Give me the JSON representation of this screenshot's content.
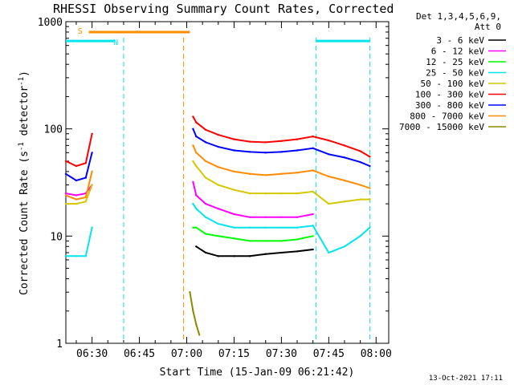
{
  "chart_data": {
    "type": "line",
    "title": "RHESSI Observing Summary Count Rates, Corrected",
    "xlabel": "Start Time (15-Jan-09 06:21:42)",
    "ylabel": "Corrected Count Rate (s^-1 detector^-1)",
    "ylabel_main": "Corrected Count Rate (s",
    "ylabel_sup1": "-1",
    "ylabel_mid": " detector",
    "ylabel_sup2": "-1",
    "ylabel_end": ")",
    "yscale": "log",
    "ylim": [
      1,
      1000
    ],
    "xlim": [
      "06:21:42",
      "08:04:00"
    ],
    "x_ticks": [
      "06:30",
      "06:45",
      "07:00",
      "07:15",
      "07:30",
      "07:45",
      "08:00"
    ],
    "y_ticks": [
      "1",
      "10",
      "100",
      "1000"
    ],
    "legend_header": [
      "Det 1,3,4,5,6,9,",
      "Att 0"
    ],
    "legend_position": "right",
    "timestamp": "13-Oct-2021 17:11",
    "flags": [
      {
        "label": "S",
        "color": "#ff8c00",
        "start": "06:29:00",
        "end": "07:01:00",
        "level": 800
      },
      {
        "label": "N",
        "color": "#00e5ee",
        "start": "06:21:42",
        "end": "06:37:00",
        "level": 660
      },
      {
        "label": "",
        "color": "#00e5ee",
        "start": "07:41:00",
        "end": "07:58:00",
        "level": 660
      }
    ],
    "night_boundaries": [
      {
        "time": "06:40:00",
        "color": "#00e5ee"
      },
      {
        "time": "06:59:00",
        "color": "#ff8c00"
      },
      {
        "time": "07:41:00",
        "color": "#00e5ee"
      },
      {
        "time": "07:58:00",
        "color": "#00e5ee"
      }
    ],
    "series": [
      {
        "name": "3 - 6 keV",
        "color": "#000000",
        "x": [
          "07:03:00",
          "07:06:00",
          "07:10:00",
          "07:15:00",
          "07:20:00",
          "07:25:00",
          "07:30:00",
          "07:35:00",
          "07:40:00"
        ],
        "values": [
          8,
          7,
          6.5,
          6.5,
          6.5,
          6.8,
          7,
          7.2,
          7.5
        ]
      },
      {
        "name": "6 - 12 keV",
        "color": "#ff00ff",
        "x": [
          "06:21:42",
          "06:25:00",
          "06:28:00",
          "06:30:00",
          "07:02:00",
          "07:03:00",
          "07:06:00",
          "07:10:00",
          "07:15:00",
          "07:20:00",
          "07:25:00",
          "07:30:00",
          "07:35:00",
          "07:40:00"
        ],
        "values": [
          25,
          24,
          25,
          30,
          32,
          24,
          20,
          18,
          16,
          15,
          15,
          15,
          15,
          16
        ]
      },
      {
        "name": "12 - 25 keV",
        "color": "#00ff00",
        "x": [
          "07:02:00",
          "07:03:00",
          "07:06:00",
          "07:10:00",
          "07:15:00",
          "07:20:00",
          "07:25:00",
          "07:30:00",
          "07:35:00",
          "07:40:00"
        ],
        "values": [
          12,
          12,
          10.5,
          10,
          9.5,
          9,
          9,
          9,
          9.3,
          10
        ]
      },
      {
        "name": "25 - 50 keV",
        "color": "#00e5ee",
        "x": [
          "06:21:42",
          "06:25:00",
          "06:28:00",
          "06:30:00",
          "07:02:00",
          "07:03:00",
          "07:06:00",
          "07:10:00",
          "07:15:00",
          "07:20:00",
          "07:25:00",
          "07:30:00",
          "07:35:00",
          "07:40:00",
          "07:45:00",
          "07:50:00",
          "07:55:00",
          "07:58:00"
        ],
        "values": [
          6.5,
          6.5,
          6.5,
          12,
          20,
          18,
          15,
          13,
          12,
          12,
          12,
          12,
          12,
          12.5,
          7,
          8,
          10,
          12
        ]
      },
      {
        "name": "50 - 100 keV",
        "color": "#d4c800",
        "x": [
          "06:21:42",
          "06:25:00",
          "06:28:00",
          "06:30:00",
          "07:02:00",
          "07:03:00",
          "07:06:00",
          "07:10:00",
          "07:15:00",
          "07:20:00",
          "07:25:00",
          "07:30:00",
          "07:35:00",
          "07:40:00",
          "07:45:00",
          "07:50:00",
          "07:55:00",
          "07:58:00"
        ],
        "values": [
          20,
          20,
          21,
          30,
          50,
          45,
          35,
          30,
          27,
          25,
          25,
          25,
          25,
          26,
          20,
          21,
          22,
          22
        ]
      },
      {
        "name": "100 - 300 keV",
        "color": "#ff0000",
        "x": [
          "06:21:42",
          "06:25:00",
          "06:28:00",
          "06:30:00",
          "07:02:00",
          "07:03:00",
          "07:06:00",
          "07:10:00",
          "07:15:00",
          "07:20:00",
          "07:25:00",
          "07:30:00",
          "07:35:00",
          "07:40:00",
          "07:45:00",
          "07:50:00",
          "07:55:00",
          "07:58:00"
        ],
        "values": [
          50,
          45,
          48,
          90,
          130,
          115,
          98,
          88,
          80,
          76,
          75,
          77,
          80,
          85,
          78,
          70,
          62,
          55
        ]
      },
      {
        "name": "300 - 800 keV",
        "color": "#0000ff",
        "x": [
          "06:21:42",
          "06:25:00",
          "06:28:00",
          "06:30:00",
          "07:02:00",
          "07:03:00",
          "07:06:00",
          "07:10:00",
          "07:15:00",
          "07:20:00",
          "07:25:00",
          "07:30:00",
          "07:35:00",
          "07:40:00",
          "07:45:00",
          "07:50:00",
          "07:55:00",
          "07:58:00"
        ],
        "values": [
          38,
          33,
          35,
          60,
          100,
          85,
          75,
          68,
          63,
          61,
          60,
          61,
          63,
          66,
          58,
          54,
          49,
          45
        ]
      },
      {
        "name": "800 - 7000 keV",
        "color": "#ff8c00",
        "x": [
          "06:21:42",
          "06:25:00",
          "06:28:00",
          "06:30:00",
          "07:02:00",
          "07:03:00",
          "07:06:00",
          "07:10:00",
          "07:15:00",
          "07:20:00",
          "07:25:00",
          "07:30:00",
          "07:35:00",
          "07:40:00",
          "07:45:00",
          "07:50:00",
          "07:55:00",
          "07:58:00"
        ],
        "values": [
          24,
          22,
          23,
          40,
          70,
          60,
          50,
          44,
          40,
          38,
          37,
          38,
          39,
          41,
          36,
          33,
          30,
          28
        ]
      },
      {
        "name": "7000 - 15000 keV",
        "color": "#8b8b00",
        "x": [
          "07:01:00",
          "07:02:00",
          "07:03:00",
          "07:04:00"
        ],
        "values": [
          3,
          2,
          1.5,
          1.2
        ]
      }
    ]
  }
}
